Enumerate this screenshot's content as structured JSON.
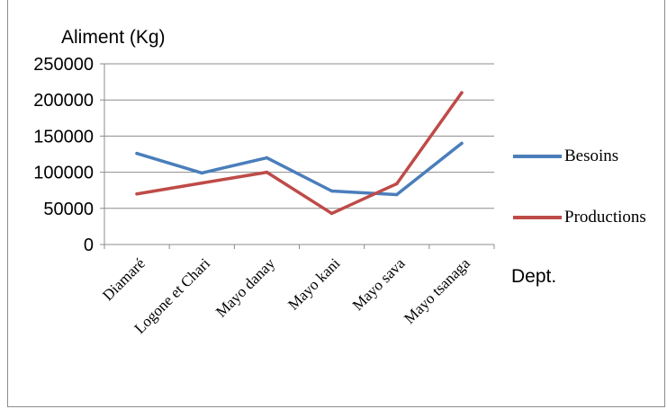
{
  "chart_data": {
    "type": "line",
    "ylabel": "Aliment (Kg)",
    "xlabel": "Dept.",
    "categories": [
      "Diamaré",
      "Logone et Chari",
      "Mayo danay",
      "Mayo kani",
      "Mayo sava",
      "Mayo tsanaga"
    ],
    "ylim": [
      0,
      250000
    ],
    "yticks": [
      "0",
      "50000",
      "100000",
      "150000",
      "200000",
      "250000"
    ],
    "grid": true,
    "legend_position": "right",
    "series": [
      {
        "name": "Besoins",
        "color": "#4a7ebb",
        "values": [
          126000,
          99000,
          120000,
          74000,
          69000,
          140000
        ]
      },
      {
        "name": "Productions",
        "color": "#be4b48",
        "values": [
          70000,
          85000,
          100000,
          43000,
          84000,
          210000
        ]
      }
    ]
  }
}
